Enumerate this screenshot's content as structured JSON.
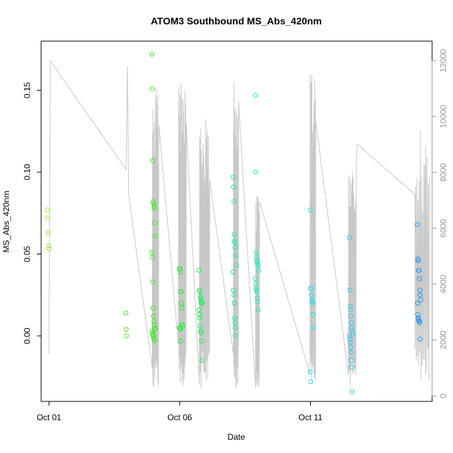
{
  "chart_data": {
    "type": "scatter",
    "title": "ATOM3 Southbound MS_Abs_420nm",
    "xlabel": "Date",
    "ylabel": "MS_Abs_420nm",
    "x_ticks": [
      "Oct 01",
      "Oct 06",
      "Oct 11"
    ],
    "x_tick_days": [
      0,
      5,
      10
    ],
    "xlim_days": [
      -0.3,
      14.65
    ],
    "ylim": [
      -0.04,
      0.18
    ],
    "y_ticks": [
      0.0,
      0.05,
      0.1,
      0.15
    ],
    "y_tick_labels": [
      "0.00",
      "0.05",
      "0.10",
      "0.15"
    ],
    "y2lim": [
      -200,
      12700
    ],
    "y2_ticks": [
      0,
      2000,
      4000,
      6000,
      8000,
      10000,
      12000
    ],
    "y2_tick_labels": [
      "0",
      "2000",
      "4000",
      "6000",
      "8000",
      "10000",
      "12000"
    ],
    "grid": false,
    "point_series": [
      {
        "day": 0.0,
        "color": "#8ff030",
        "values": [
          0.077,
          0.072,
          0.063,
          0.055,
          0.053
        ]
      },
      {
        "day": 3.0,
        "color": "#52ef22",
        "values": [
          0.014,
          0.004,
          0.0
        ]
      },
      {
        "day": 4.0,
        "color": "#3aee1e",
        "values": [
          0.172,
          0.151,
          0.107,
          0.082,
          0.081,
          0.079,
          0.078,
          0.069,
          0.061,
          0.051,
          0.048,
          0.033,
          0.017,
          0.012,
          0.009,
          0.007,
          0.005,
          0.004,
          0.003,
          0.002,
          0.001,
          0.0,
          0.0,
          -0.002,
          -0.003
        ]
      },
      {
        "day": 5.05,
        "color": "#1eee32",
        "values": [
          0.041,
          0.041,
          0.039,
          0.027,
          0.027,
          0.02,
          0.017,
          0.007,
          0.006,
          0.005,
          0.005,
          0.004,
          -0.003
        ]
      },
      {
        "day": 5.8,
        "color": "#1bee55",
        "values": [
          0.04,
          0.028,
          0.027,
          0.024,
          0.023,
          0.021,
          0.02,
          0.02,
          0.02,
          0.016,
          0.013,
          0.011,
          0.006,
          0.003,
          0.002,
          -0.003,
          -0.015
        ]
      },
      {
        "day": 7.1,
        "color": "#1aed98",
        "values": [
          0.097,
          0.091,
          0.082,
          0.062,
          0.058,
          0.057,
          0.054,
          0.049,
          0.043,
          0.039,
          0.028,
          0.025,
          0.02,
          0.011,
          0.008,
          0.005,
          0.0
        ]
      },
      {
        "day": 7.95,
        "color": "#22edbe",
        "values": [
          0.147,
          0.1,
          0.051,
          0.048,
          0.046,
          0.045,
          0.044,
          0.043,
          0.04,
          0.035,
          0.032,
          0.029,
          0.028,
          0.027,
          0.023,
          0.021,
          0.016
        ]
      },
      {
        "day": 10.05,
        "color": "#22dfed",
        "values": [
          0.077,
          0.029,
          0.029,
          0.025,
          0.022,
          0.021,
          0.02,
          0.013,
          0.005,
          -0.022,
          -0.028
        ]
      },
      {
        "day": 11.55,
        "color": "#2fcaed",
        "values": [
          0.06,
          0.028,
          0.018,
          0.016,
          0.012,
          0.008,
          0.005,
          0.003,
          0.001,
          0.0,
          -0.002,
          -0.004,
          -0.007,
          -0.01,
          -0.015,
          -0.019,
          -0.034
        ]
      },
      {
        "day": 14.15,
        "color": "#2295ed",
        "values": [
          0.068,
          0.047,
          0.046,
          0.04,
          0.04,
          0.035,
          0.028,
          0.025,
          0.022,
          0.02,
          0.013,
          0.011,
          0.01,
          0.009,
          0.009,
          0.008,
          -0.002
        ]
      }
    ],
    "secondary_line": {
      "label": "",
      "color": "#c8c8c8",
      "anchors": [
        [
          0.0,
          1500
        ],
        [
          0.05,
          12000
        ],
        [
          2.95,
          8100
        ],
        [
          3.0,
          11800
        ],
        [
          3.05,
          7200
        ],
        [
          4.0,
          7900
        ],
        [
          4.1,
          11000
        ],
        [
          5.0,
          9000
        ],
        [
          5.05,
          11200
        ],
        [
          5.15,
          10200
        ],
        [
          6.0,
          9900
        ],
        [
          6.05,
          6800
        ],
        [
          6.1,
          9300
        ],
        [
          7.1,
          9600
        ],
        [
          7.15,
          5800
        ],
        [
          8.0,
          7000
        ],
        [
          10.0,
          10200
        ],
        [
          10.05,
          11500
        ],
        [
          11.6,
          8000
        ],
        [
          11.8,
          9000
        ],
        [
          14.0,
          7200
        ],
        [
          14.2,
          9500
        ],
        [
          14.4,
          8900
        ],
        [
          14.5,
          1800
        ]
      ],
      "spiky_segments": [
        {
          "start": 3.95,
          "end": 4.2,
          "lo": 200,
          "hi": 10900
        },
        {
          "start": 4.95,
          "end": 5.25,
          "lo": 200,
          "hi": 11600
        },
        {
          "start": 5.75,
          "end": 6.15,
          "lo": 200,
          "hi": 9800
        },
        {
          "start": 7.05,
          "end": 7.25,
          "lo": 250,
          "hi": 11300
        },
        {
          "start": 7.9,
          "end": 8.05,
          "lo": 250,
          "hi": 7200
        },
        {
          "start": 9.98,
          "end": 10.2,
          "lo": 500,
          "hi": 11500
        },
        {
          "start": 11.45,
          "end": 11.75,
          "lo": 200,
          "hi": 8700
        },
        {
          "start": 14.0,
          "end": 14.55,
          "lo": 500,
          "hi": 8600
        }
      ]
    }
  }
}
